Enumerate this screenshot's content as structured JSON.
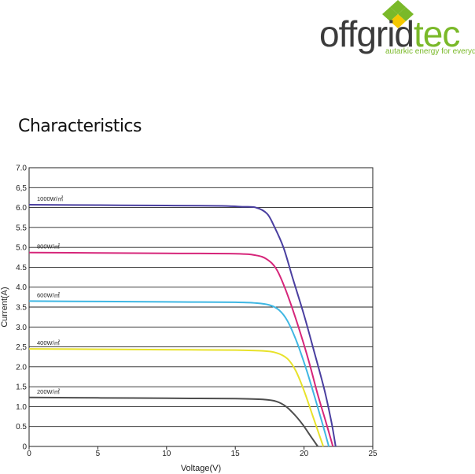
{
  "brand": {
    "name_part1": "offgrid",
    "name_part2": "tec",
    "tagline": "autarkic energy for everyday",
    "colors": {
      "green": "#7ab929",
      "yellow": "#f5c800",
      "gray": "#3b3b3b"
    }
  },
  "heading": "Characteristics",
  "chart_data": {
    "type": "line",
    "xlabel": "Voltage(V)",
    "ylabel": "Current(A)",
    "xlim": [
      0,
      25
    ],
    "ylim": [
      0,
      7
    ],
    "x_ticks": [
      0,
      5,
      10,
      15,
      20,
      25
    ],
    "y_ticks": [
      0,
      0.5,
      1.0,
      1.5,
      2.0,
      2.5,
      3.0,
      3.5,
      4.0,
      4.5,
      5.0,
      5.5,
      6.0,
      6.5,
      7.0
    ],
    "y_tick_labels": [
      "0",
      "0.5",
      "1.0",
      "1.5",
      "2.0",
      "2,5",
      "3.0",
      "3.5",
      "4.0",
      "4.5",
      "5.0",
      "5.5",
      "6.0",
      "6,5",
      "7.0"
    ],
    "grid": "horizontal",
    "series": [
      {
        "name": "1000W/㎡",
        "color": "#4a3fa0",
        "points": [
          [
            0,
            6.07
          ],
          [
            5,
            6.06
          ],
          [
            10,
            6.05
          ],
          [
            14,
            6.04
          ],
          [
            15.5,
            6.02
          ],
          [
            16.5,
            6.0
          ],
          [
            17.3,
            5.85
          ],
          [
            17.8,
            5.55
          ],
          [
            18.5,
            5.0
          ],
          [
            19.2,
            4.2
          ],
          [
            20,
            3.3
          ],
          [
            20.8,
            2.3
          ],
          [
            21.5,
            1.4
          ],
          [
            22,
            0.6
          ],
          [
            22.3,
            0.0
          ]
        ]
      },
      {
        "name": "800W/㎡",
        "color": "#d6267a",
        "points": [
          [
            0,
            4.87
          ],
          [
            5,
            4.86
          ],
          [
            10,
            4.85
          ],
          [
            15,
            4.84
          ],
          [
            16.5,
            4.8
          ],
          [
            17.3,
            4.7
          ],
          [
            18,
            4.45
          ],
          [
            18.7,
            3.9
          ],
          [
            19.5,
            3.1
          ],
          [
            20.3,
            2.2
          ],
          [
            21,
            1.3
          ],
          [
            21.6,
            0.6
          ],
          [
            22.1,
            0.0
          ]
        ]
      },
      {
        "name": "600W/㎡",
        "color": "#3fb7e3",
        "points": [
          [
            0,
            3.65
          ],
          [
            5,
            3.64
          ],
          [
            10,
            3.63
          ],
          [
            15,
            3.62
          ],
          [
            16.5,
            3.6
          ],
          [
            17.5,
            3.55
          ],
          [
            18.2,
            3.42
          ],
          [
            18.8,
            3.15
          ],
          [
            19.5,
            2.6
          ],
          [
            20.2,
            1.9
          ],
          [
            20.9,
            1.1
          ],
          [
            21.4,
            0.5
          ],
          [
            21.8,
            0.0
          ]
        ]
      },
      {
        "name": "400W/㎡",
        "color": "#e8e22a",
        "points": [
          [
            0,
            2.45
          ],
          [
            5,
            2.44
          ],
          [
            10,
            2.43
          ],
          [
            15,
            2.42
          ],
          [
            17,
            2.4
          ],
          [
            18,
            2.35
          ],
          [
            18.8,
            2.2
          ],
          [
            19.4,
            1.9
          ],
          [
            20,
            1.4
          ],
          [
            20.6,
            0.8
          ],
          [
            21.1,
            0.3
          ],
          [
            21.4,
            0.0
          ]
        ]
      },
      {
        "name": "200W/㎡",
        "color": "#4d4d4d",
        "points": [
          [
            0,
            1.23
          ],
          [
            5,
            1.22
          ],
          [
            10,
            1.21
          ],
          [
            15,
            1.2
          ],
          [
            17,
            1.18
          ],
          [
            18,
            1.13
          ],
          [
            18.7,
            1.0
          ],
          [
            19.3,
            0.8
          ],
          [
            19.9,
            0.55
          ],
          [
            20.5,
            0.25
          ],
          [
            21,
            0.0
          ]
        ]
      }
    ]
  }
}
